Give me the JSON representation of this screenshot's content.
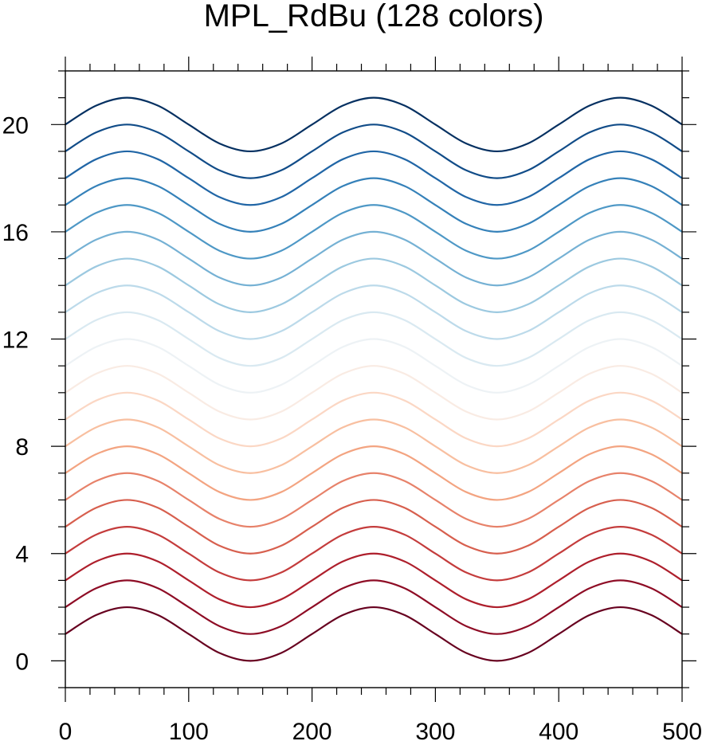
{
  "chart_data": {
    "type": "line",
    "title": "MPL_RdBu (128 colors)",
    "xlabel": "",
    "ylabel": "",
    "xlim": [
      0,
      500
    ],
    "ylim": [
      -1,
      22
    ],
    "x_ticks": [
      0,
      100,
      200,
      300,
      400,
      500
    ],
    "y_ticks": [
      0,
      4,
      8,
      12,
      16,
      20
    ],
    "x_tick_labels": [
      "0",
      "100",
      "200",
      "300",
      "400",
      "500"
    ],
    "y_tick_labels": [
      "0",
      "4",
      "8",
      "12",
      "16",
      "20"
    ],
    "grid": false,
    "legend": "none",
    "x": [
      0,
      25,
      50,
      75,
      100,
      125,
      150,
      175,
      200,
      225,
      250,
      275,
      300,
      325,
      350,
      375,
      400,
      425,
      450,
      475,
      500
    ],
    "series": [
      {
        "color": "#67001f",
        "values": [
          1.0,
          1.707,
          2.0,
          1.707,
          1.0,
          0.293,
          0.0,
          0.293,
          1.0,
          1.707,
          2.0,
          1.707,
          1.0,
          0.293,
          0.0,
          0.293,
          1.0,
          1.707,
          2.0,
          1.707,
          1.0
        ]
      },
      {
        "color": "#8e0c25",
        "values": [
          2.0,
          2.707,
          3.0,
          2.707,
          2.0,
          1.293,
          1.0,
          1.293,
          2.0,
          2.707,
          3.0,
          2.707,
          2.0,
          1.293,
          1.0,
          1.293,
          2.0,
          2.707,
          3.0,
          2.707,
          2.0
        ]
      },
      {
        "color": "#ae1f2c",
        "values": [
          3.0,
          3.707,
          4.0,
          3.707,
          3.0,
          2.293,
          2.0,
          2.293,
          3.0,
          3.707,
          4.0,
          3.707,
          3.0,
          2.293,
          2.0,
          2.293,
          3.0,
          3.707,
          4.0,
          3.707,
          3.0
        ]
      },
      {
        "color": "#c43c3c",
        "values": [
          4.0,
          4.707,
          5.0,
          4.707,
          4.0,
          3.293,
          3.0,
          3.293,
          4.0,
          4.707,
          5.0,
          4.707,
          4.0,
          3.293,
          3.0,
          3.293,
          4.0,
          4.707,
          5.0,
          4.707,
          4.0
        ]
      },
      {
        "color": "#d75f4e",
        "values": [
          5.0,
          5.707,
          6.0,
          5.707,
          5.0,
          4.293,
          4.0,
          4.293,
          5.0,
          5.707,
          6.0,
          5.707,
          5.0,
          4.293,
          4.0,
          4.293,
          5.0,
          5.707,
          6.0,
          5.707,
          5.0
        ]
      },
      {
        "color": "#e7826a",
        "values": [
          6.0,
          6.707,
          7.0,
          6.707,
          6.0,
          5.293,
          5.0,
          5.293,
          6.0,
          6.707,
          7.0,
          6.707,
          6.0,
          5.293,
          5.0,
          5.293,
          6.0,
          6.707,
          7.0,
          6.707,
          6.0
        ]
      },
      {
        "color": "#f3a481",
        "values": [
          7.0,
          7.707,
          8.0,
          7.707,
          7.0,
          6.293,
          6.0,
          6.293,
          7.0,
          7.707,
          8.0,
          7.707,
          7.0,
          6.293,
          6.0,
          6.293,
          7.0,
          7.707,
          8.0,
          7.707,
          7.0
        ]
      },
      {
        "color": "#f8bfa0",
        "values": [
          8.0,
          8.707,
          9.0,
          8.707,
          8.0,
          7.293,
          7.0,
          7.293,
          8.0,
          8.707,
          9.0,
          8.707,
          8.0,
          7.293,
          7.0,
          7.293,
          8.0,
          8.707,
          9.0,
          8.707,
          8.0
        ]
      },
      {
        "color": "#fbd7c4",
        "values": [
          9.0,
          9.707,
          10.0,
          9.707,
          9.0,
          8.293,
          8.0,
          8.293,
          9.0,
          9.707,
          10.0,
          9.707,
          9.0,
          8.293,
          8.0,
          8.293,
          9.0,
          9.707,
          10.0,
          9.707,
          9.0
        ]
      },
      {
        "color": "#f9ebe3",
        "values": [
          10.0,
          10.707,
          11.0,
          10.707,
          10.0,
          9.293,
          9.0,
          9.293,
          10.0,
          10.707,
          11.0,
          10.707,
          10.0,
          9.293,
          9.0,
          9.293,
          10.0,
          10.707,
          11.0,
          10.707,
          10.0
        ]
      },
      {
        "color": "#edf2f5",
        "values": [
          11.0,
          11.707,
          12.0,
          11.707,
          11.0,
          10.293,
          10.0,
          10.293,
          11.0,
          11.707,
          12.0,
          11.707,
          11.0,
          10.293,
          10.0,
          10.293,
          11.0,
          11.707,
          12.0,
          11.707,
          11.0
        ]
      },
      {
        "color": "#d9e9f1",
        "values": [
          12.0,
          12.707,
          13.0,
          12.707,
          12.0,
          11.293,
          11.0,
          11.293,
          12.0,
          12.707,
          13.0,
          12.707,
          12.0,
          11.293,
          11.0,
          11.293,
          12.0,
          12.707,
          13.0,
          12.707,
          12.0
        ]
      },
      {
        "color": "#bcdaea",
        "values": [
          13.0,
          13.707,
          14.0,
          13.707,
          13.0,
          12.293,
          12.0,
          12.293,
          13.0,
          13.707,
          14.0,
          13.707,
          13.0,
          12.293,
          12.0,
          12.293,
          13.0,
          13.707,
          14.0,
          13.707,
          13.0
        ]
      },
      {
        "color": "#9cc9e0",
        "values": [
          14.0,
          14.707,
          15.0,
          14.707,
          14.0,
          13.293,
          13.0,
          13.293,
          14.0,
          14.707,
          15.0,
          14.707,
          14.0,
          13.293,
          13.0,
          13.293,
          14.0,
          14.707,
          15.0,
          14.707,
          14.0
        ]
      },
      {
        "color": "#75b1d4",
        "values": [
          15.0,
          15.707,
          16.0,
          15.707,
          15.0,
          14.293,
          14.0,
          14.293,
          15.0,
          15.707,
          16.0,
          15.707,
          15.0,
          14.293,
          14.0,
          14.293,
          15.0,
          15.707,
          16.0,
          15.707,
          15.0
        ]
      },
      {
        "color": "#4e98c6",
        "values": [
          16.0,
          16.707,
          17.0,
          16.707,
          16.0,
          15.293,
          15.0,
          15.293,
          16.0,
          16.707,
          17.0,
          16.707,
          16.0,
          15.293,
          15.0,
          15.293,
          16.0,
          16.707,
          17.0,
          16.707,
          16.0
        ]
      },
      {
        "color": "#3581b9",
        "values": [
          17.0,
          17.707,
          18.0,
          17.707,
          17.0,
          16.293,
          16.0,
          16.293,
          17.0,
          17.707,
          18.0,
          17.707,
          17.0,
          16.293,
          16.0,
          16.293,
          17.0,
          17.707,
          18.0,
          17.707,
          17.0
        ]
      },
      {
        "color": "#2166a6",
        "values": [
          18.0,
          18.707,
          19.0,
          18.707,
          18.0,
          17.293,
          17.0,
          17.293,
          18.0,
          18.707,
          19.0,
          18.707,
          18.0,
          17.293,
          17.0,
          17.293,
          18.0,
          18.707,
          19.0,
          18.707,
          18.0
        ]
      },
      {
        "color": "#114c88",
        "values": [
          19.0,
          19.707,
          20.0,
          19.707,
          19.0,
          18.293,
          18.0,
          18.293,
          19.0,
          19.707,
          20.0,
          19.707,
          19.0,
          18.293,
          18.0,
          18.293,
          19.0,
          19.707,
          20.0,
          19.707,
          19.0
        ]
      },
      {
        "color": "#053061",
        "values": [
          20.0,
          20.707,
          21.0,
          20.707,
          20.0,
          19.293,
          19.0,
          19.293,
          20.0,
          20.707,
          21.0,
          20.707,
          20.0,
          19.293,
          19.0,
          19.293,
          20.0,
          20.707,
          21.0,
          20.707,
          20.0
        ]
      }
    ]
  }
}
